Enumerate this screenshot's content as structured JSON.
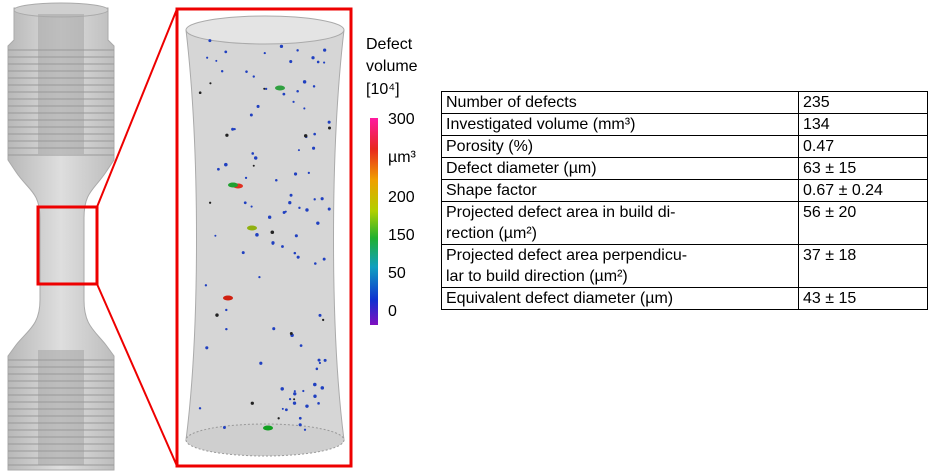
{
  "colorbar": {
    "title": [
      "Defect",
      "volume",
      "[10⁴]"
    ],
    "labels": [
      "300",
      "µm³",
      "200",
      "150",
      "50",
      "0"
    ]
  },
  "table": {
    "rows": [
      [
        [
          "Number of defects"
        ],
        [
          "235"
        ]
      ],
      [
        [
          "Investigated volume (mm³)"
        ],
        [
          "134"
        ]
      ],
      [
        [
          "Porosity (%)"
        ],
        [
          "0.47"
        ]
      ],
      [
        [
          "Defect diameter (µm)"
        ],
        [
          "63 ± 15"
        ]
      ],
      [
        [
          "Shape factor"
        ],
        [
          "0.67 ± 0.24"
        ]
      ],
      [
        [
          "Projected defect area in build di-",
          "rection (µm²)"
        ],
        [
          "56 ± 20"
        ]
      ],
      [
        [
          "Projected defect area perpendicu-",
          "lar to build direction (µm²)"
        ],
        [
          "37 ± 18"
        ]
      ],
      [
        [
          "Equivalent defect diameter (µm)"
        ],
        [
          "43 ± 15"
        ]
      ]
    ]
  }
}
